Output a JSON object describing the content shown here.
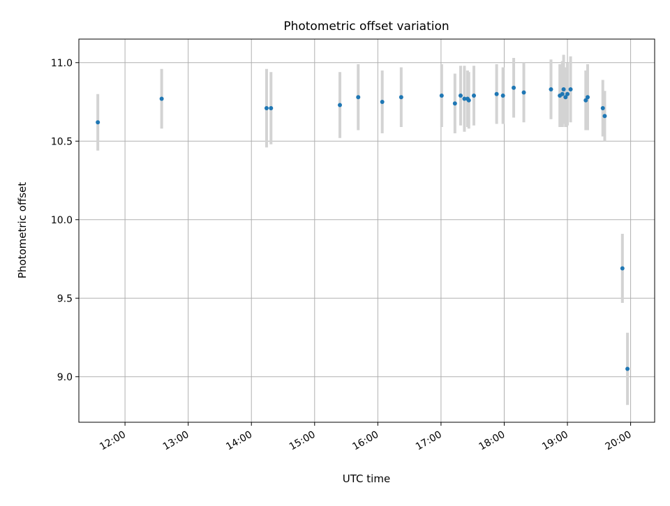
{
  "chart_data": {
    "type": "scatter",
    "title": "Photometric offset variation",
    "xlabel": "UTC time",
    "ylabel": "Photometric offset",
    "x_unit": "UTC hours",
    "xlim": [
      11.27,
      20.38
    ],
    "ylim": [
      8.71,
      11.15
    ],
    "grid": true,
    "x_ticks": [
      {
        "label": "12:00",
        "value": 12.0
      },
      {
        "label": "13:00",
        "value": 13.0
      },
      {
        "label": "14:00",
        "value": 14.0
      },
      {
        "label": "15:00",
        "value": 15.0
      },
      {
        "label": "16:00",
        "value": 16.0
      },
      {
        "label": "17:00",
        "value": 17.0
      },
      {
        "label": "18:00",
        "value": 18.0
      },
      {
        "label": "19:00",
        "value": 19.0
      },
      {
        "label": "20:00",
        "value": 20.0
      }
    ],
    "y_ticks": [
      {
        "label": "9.0",
        "value": 9.0
      },
      {
        "label": "9.5",
        "value": 9.5
      },
      {
        "label": "10.0",
        "value": 10.0
      },
      {
        "label": "10.5",
        "value": 10.5
      },
      {
        "label": "11.0",
        "value": 11.0
      }
    ],
    "marker_color": "#1f77b4",
    "errorbar_color": "#d3d3d3",
    "points": [
      {
        "t": "11:34",
        "x": 11.57,
        "y": 10.62,
        "err": 0.18
      },
      {
        "t": "12:35",
        "x": 12.58,
        "y": 10.77,
        "err": 0.19
      },
      {
        "t": "14:14",
        "x": 14.24,
        "y": 10.71,
        "err": 0.25
      },
      {
        "t": "14:19",
        "x": 14.31,
        "y": 10.71,
        "err": 0.23
      },
      {
        "t": "15:24",
        "x": 15.4,
        "y": 10.73,
        "err": 0.21
      },
      {
        "t": "15:41",
        "x": 15.69,
        "y": 10.78,
        "err": 0.21
      },
      {
        "t": "16:04",
        "x": 16.07,
        "y": 10.75,
        "err": 0.2
      },
      {
        "t": "16:22",
        "x": 16.37,
        "y": 10.78,
        "err": 0.19
      },
      {
        "t": "17:01",
        "x": 17.01,
        "y": 10.79,
        "err": 0.2
      },
      {
        "t": "17:13",
        "x": 17.22,
        "y": 10.74,
        "err": 0.19
      },
      {
        "t": "17:18",
        "x": 17.31,
        "y": 10.79,
        "err": 0.19
      },
      {
        "t": "17:22",
        "x": 17.37,
        "y": 10.77,
        "err": 0.21
      },
      {
        "t": "17:25",
        "x": 17.42,
        "y": 10.77,
        "err": 0.18
      },
      {
        "t": "17:26",
        "x": 17.44,
        "y": 10.76,
        "err": 0.18
      },
      {
        "t": "17:31",
        "x": 17.52,
        "y": 10.79,
        "err": 0.19
      },
      {
        "t": "17:53",
        "x": 17.88,
        "y": 10.8,
        "err": 0.19
      },
      {
        "t": "17:59",
        "x": 17.98,
        "y": 10.79,
        "err": 0.18
      },
      {
        "t": "18:09",
        "x": 18.15,
        "y": 10.84,
        "err": 0.19
      },
      {
        "t": "18:18",
        "x": 18.31,
        "y": 10.81,
        "err": 0.19
      },
      {
        "t": "18:44",
        "x": 18.74,
        "y": 10.83,
        "err": 0.19
      },
      {
        "t": "18:53",
        "x": 18.88,
        "y": 10.79,
        "err": 0.2
      },
      {
        "t": "18:55",
        "x": 18.92,
        "y": 10.8,
        "err": 0.21
      },
      {
        "t": "18:56",
        "x": 18.94,
        "y": 10.83,
        "err": 0.22
      },
      {
        "t": "18:58",
        "x": 18.97,
        "y": 10.78,
        "err": 0.19
      },
      {
        "t": "19:00",
        "x": 19.0,
        "y": 10.8,
        "err": 0.2
      },
      {
        "t": "19:03",
        "x": 19.05,
        "y": 10.83,
        "err": 0.21
      },
      {
        "t": "19:17",
        "x": 19.29,
        "y": 10.76,
        "err": 0.19
      },
      {
        "t": "19:19",
        "x": 19.32,
        "y": 10.78,
        "err": 0.21
      },
      {
        "t": "19:34",
        "x": 19.56,
        "y": 10.71,
        "err": 0.18
      },
      {
        "t": "19:35",
        "x": 19.59,
        "y": 10.66,
        "err": 0.16
      },
      {
        "t": "19:52",
        "x": 19.87,
        "y": 9.69,
        "err": 0.22
      },
      {
        "t": "19:57",
        "x": 19.95,
        "y": 9.05,
        "err": 0.23
      }
    ]
  }
}
